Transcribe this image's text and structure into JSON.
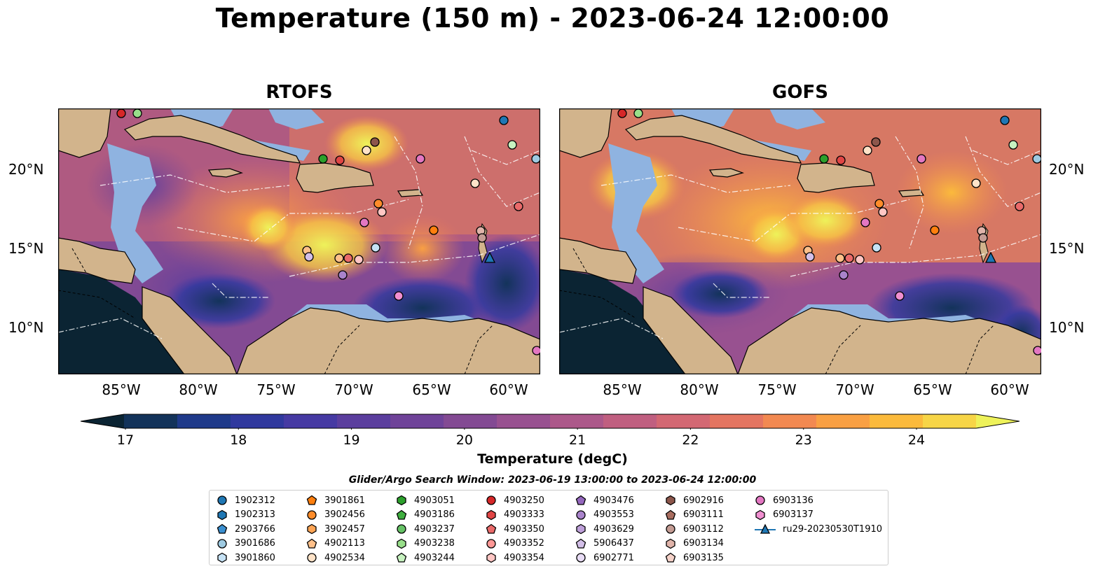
{
  "title": "Temperature (150 m) - 2023-06-24 12:00:00",
  "panels": [
    {
      "title": "RTOFS"
    },
    {
      "title": "GOFS"
    }
  ],
  "axes": {
    "yticks": [
      "20°N",
      "15°N",
      "10°N"
    ],
    "xticks": [
      "85°W",
      "80°W",
      "75°W",
      "70°W",
      "65°W",
      "60°W"
    ]
  },
  "colorbar": {
    "label": "Temperature (degC)",
    "ticks": [
      "17",
      "18",
      "19",
      "20",
      "21",
      "22",
      "23",
      "24"
    ],
    "min": 16.75,
    "max": 24.5,
    "colors": [
      "#0b2433",
      "#13335a",
      "#1f3a8a",
      "#30399e",
      "#463aa3",
      "#5b3e9e",
      "#6f4399",
      "#834a93",
      "#985190",
      "#ac588a",
      "#c05f80",
      "#d36873",
      "#e47561",
      "#f28951",
      "#f9a043",
      "#fbba3c",
      "#f7d547",
      "#eef25a"
    ]
  },
  "legend": {
    "title": "Glider/Argo Search Window: 2023-06-19 13:00:00 to 2023-06-24 12:00:00",
    "items": [
      {
        "label": "1902312",
        "color": "#1f77b4",
        "marker": "circle"
      },
      {
        "label": "1902313",
        "color": "#1f77b4",
        "marker": "hexagon"
      },
      {
        "label": "2903766",
        "color": "#3a8fd0",
        "marker": "pentagon"
      },
      {
        "label": "3901686",
        "color": "#9ecae1",
        "marker": "circle"
      },
      {
        "label": "3901860",
        "color": "#c6e2f5",
        "marker": "hexagon"
      },
      {
        "label": "3901861",
        "color": "#ff7f0e",
        "marker": "pentagon"
      },
      {
        "label": "3902456",
        "color": "#ff8c2a",
        "marker": "circle"
      },
      {
        "label": "3902457",
        "color": "#ffa555",
        "marker": "hexagon"
      },
      {
        "label": "4902113",
        "color": "#ffc08a",
        "marker": "pentagon"
      },
      {
        "label": "4902534",
        "color": "#ffe3c8",
        "marker": "circle"
      },
      {
        "label": "4903051",
        "color": "#2ca02c",
        "marker": "hexagon"
      },
      {
        "label": "4903186",
        "color": "#3fae3f",
        "marker": "pentagon"
      },
      {
        "label": "4903237",
        "color": "#66c266",
        "marker": "circle"
      },
      {
        "label": "4903238",
        "color": "#98df8a",
        "marker": "hexagon"
      },
      {
        "label": "4903244",
        "color": "#c7f2c0",
        "marker": "pentagon"
      },
      {
        "label": "4903250",
        "color": "#d62728",
        "marker": "circle"
      },
      {
        "label": "4903333",
        "color": "#e04545",
        "marker": "hexagon"
      },
      {
        "label": "4903350",
        "color": "#ea6a6a",
        "marker": "pentagon"
      },
      {
        "label": "4903352",
        "color": "#ff9896",
        "marker": "circle"
      },
      {
        "label": "4903354",
        "color": "#ffc6c4",
        "marker": "hexagon"
      },
      {
        "label": "4903476",
        "color": "#9467bd",
        "marker": "pentagon"
      },
      {
        "label": "4903553",
        "color": "#a983cb",
        "marker": "circle"
      },
      {
        "label": "4903629",
        "color": "#bea0d9",
        "marker": "hexagon"
      },
      {
        "label": "5906437",
        "color": "#d3bfe8",
        "marker": "pentagon"
      },
      {
        "label": "6902771",
        "color": "#e8dcf5",
        "marker": "circle"
      },
      {
        "label": "6902916",
        "color": "#8c564b",
        "marker": "hexagon"
      },
      {
        "label": "6903111",
        "color": "#a86d60",
        "marker": "pentagon"
      },
      {
        "label": "6903112",
        "color": "#c49c94",
        "marker": "circle"
      },
      {
        "label": "6903134",
        "color": "#e0b4aa",
        "marker": "hexagon"
      },
      {
        "label": "6903135",
        "color": "#f5d2c9",
        "marker": "pentagon"
      },
      {
        "label": "6903136",
        "color": "#e377c2",
        "marker": "circle"
      },
      {
        "label": "6903137",
        "color": "#f08fd0",
        "marker": "hexagon"
      },
      {
        "label": "ru29-20230530T1910",
        "color": "#1f77b4",
        "marker": "triangle-line"
      }
    ]
  },
  "chart_data": [
    {
      "type": "heatmap",
      "title": "RTOFS",
      "xlabel": "",
      "ylabel": "",
      "xlim": [
        -89,
        -58
      ],
      "ylim": [
        7,
        24
      ],
      "x_ticks": [
        -85,
        -80,
        -75,
        -70,
        -65,
        -60
      ],
      "y_ticks": [
        10,
        15,
        20
      ],
      "grid": false
    },
    {
      "type": "heatmap",
      "title": "GOFS",
      "xlabel": "",
      "ylabel": "",
      "xlim": [
        -89,
        -58
      ],
      "ylim": [
        7,
        24
      ],
      "x_ticks": [
        -85,
        -80,
        -75,
        -70,
        -65,
        -60
      ],
      "y_ticks": [
        10,
        15,
        20
      ],
      "grid": false
    }
  ]
}
